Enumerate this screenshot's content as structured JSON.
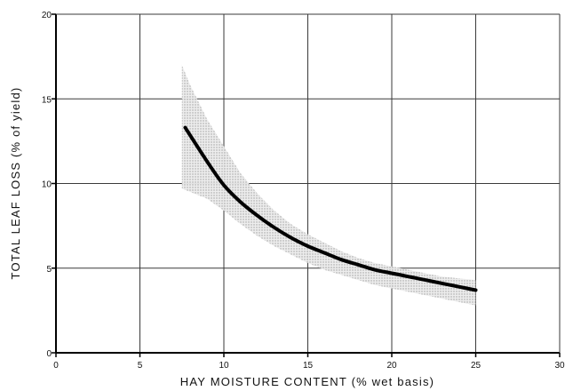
{
  "chart_data": {
    "type": "line",
    "title": "",
    "xlabel": "HAY MOISTURE CONTENT (% wet basis)",
    "ylabel": "TOTAL LEAF LOSS (% of yield)",
    "xlim": [
      0,
      30
    ],
    "ylim": [
      0,
      20
    ],
    "x_ticks": [
      0,
      5,
      10,
      15,
      20,
      25,
      30
    ],
    "y_ticks": [
      0,
      5,
      10,
      15,
      20
    ],
    "x_tick_labels": [
      "0",
      "5",
      "10",
      "15",
      "20",
      "25",
      "30"
    ],
    "y_tick_labels": [
      "0",
      "5",
      "10",
      "15",
      "20"
    ],
    "grid": true,
    "series": [
      {
        "x": [
          7.7,
          9,
          10,
          11,
          12,
          13,
          14,
          15,
          16,
          17,
          18,
          19,
          20,
          21,
          22,
          23,
          24,
          25
        ],
        "values": [
          13.3,
          11.3,
          9.9,
          8.9,
          8.1,
          7.4,
          6.8,
          6.3,
          5.9,
          5.5,
          5.2,
          4.9,
          4.7,
          4.5,
          4.3,
          4.1,
          3.9,
          3.7
        ]
      }
    ],
    "band": {
      "x": [
        7.5,
        8,
        9,
        10,
        11,
        12,
        13,
        14,
        15,
        16,
        17,
        18,
        19,
        20,
        21,
        22,
        23,
        24,
        25
      ],
      "upper": [
        17.0,
        15.8,
        13.8,
        12.2,
        10.6,
        9.4,
        8.4,
        7.6,
        7.0,
        6.5,
        6.0,
        5.6,
        5.3,
        5.1,
        4.9,
        4.7,
        4.5,
        4.4,
        4.3
      ],
      "lower": [
        9.7,
        9.5,
        9.1,
        8.4,
        7.6,
        6.9,
        6.3,
        5.8,
        5.3,
        4.9,
        4.6,
        4.3,
        4.0,
        3.8,
        3.6,
        3.4,
        3.2,
        3.0,
        2.8
      ]
    }
  }
}
